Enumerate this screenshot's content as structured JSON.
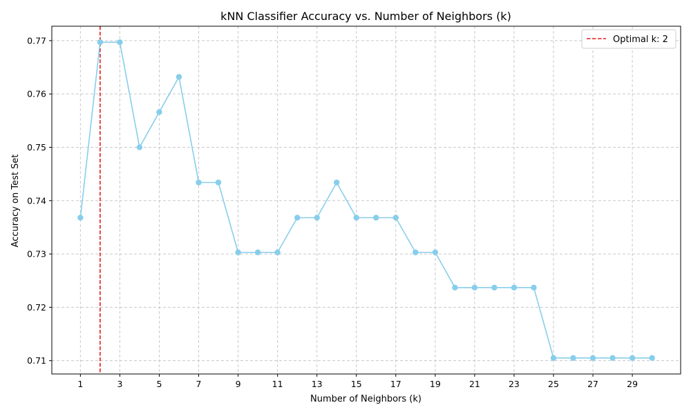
{
  "chart_data": {
    "type": "line",
    "title": "kNN Classifier Accuracy vs. Number of Neighbors (k)",
    "xlabel": "Number of Neighbors (k)",
    "ylabel": "Accuracy on Test Set",
    "x": [
      1,
      2,
      3,
      4,
      5,
      6,
      7,
      8,
      9,
      10,
      11,
      12,
      13,
      14,
      15,
      16,
      17,
      18,
      19,
      20,
      21,
      22,
      23,
      24,
      25,
      26,
      27,
      28,
      29,
      30
    ],
    "series": [
      {
        "values": [
          0.7368,
          0.7697,
          0.7697,
          0.75,
          0.7566,
          0.7632,
          0.7434,
          0.7434,
          0.7303,
          0.7303,
          0.7303,
          0.7368,
          0.7368,
          0.7434,
          0.7368,
          0.7368,
          0.7368,
          0.7303,
          0.7303,
          0.7237,
          0.7237,
          0.7237,
          0.7237,
          0.7237,
          0.7105,
          0.7105,
          0.7105,
          0.7105,
          0.7105,
          0.7105
        ],
        "color": "#87ceeb",
        "marker": "circle"
      }
    ],
    "xticks": [
      1,
      3,
      5,
      7,
      9,
      11,
      13,
      15,
      17,
      19,
      21,
      23,
      25,
      27,
      29
    ],
    "yticks": [
      0.71,
      0.72,
      0.73,
      0.74,
      0.75,
      0.76,
      0.77
    ],
    "xlim": [
      -0.45,
      31.45
    ],
    "ylim": [
      0.7075,
      0.7727
    ],
    "grid": true,
    "vline": {
      "x": 2,
      "color": "#e41a1c",
      "style": "dashed",
      "label": "Optimal k: 2"
    },
    "legend": {
      "position": "top-right",
      "entries": [
        "Optimal k: 2"
      ]
    }
  }
}
